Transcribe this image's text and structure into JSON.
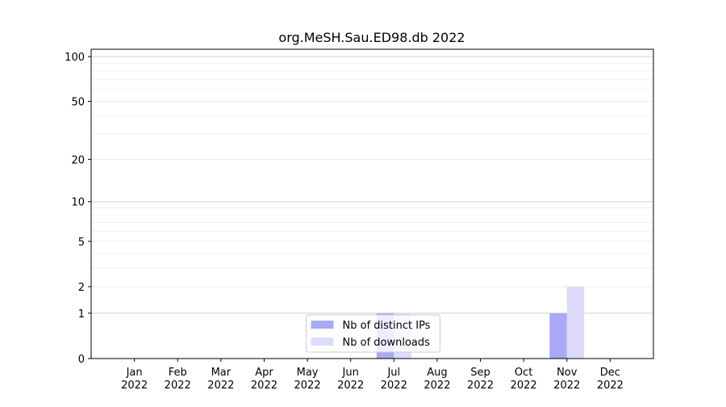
{
  "chart_data": {
    "type": "bar",
    "title": "org.MeSH.Sau.ED98.db 2022",
    "categories": [
      "Jan\n2022",
      "Feb\n2022",
      "Mar\n2022",
      "Apr\n2022",
      "May\n2022",
      "Jun\n2022",
      "Jul\n2022",
      "Aug\n2022",
      "Sep\n2022",
      "Oct\n2022",
      "Nov\n2022",
      "Dec\n2022"
    ],
    "series": [
      {
        "name": "Nb of distinct IPs",
        "color": "#a9a9f7",
        "values": [
          0,
          0,
          0,
          0,
          0,
          0,
          1,
          0,
          0,
          0,
          1,
          0
        ]
      },
      {
        "name": "Nb of downloads",
        "color": "#dcdcfa",
        "values": [
          0,
          0,
          0,
          0,
          0,
          0,
          1,
          0,
          0,
          0,
          2,
          0
        ]
      }
    ],
    "y_scale": "log1p",
    "ylim": [
      0,
      112
    ],
    "yticks": [
      0,
      1,
      2,
      5,
      10,
      20,
      50,
      100
    ],
    "minor_yticks": [
      3,
      4,
      6,
      7,
      8,
      9,
      30,
      40,
      60,
      70,
      80,
      90
    ],
    "grid": true,
    "legend": "lower center"
  }
}
